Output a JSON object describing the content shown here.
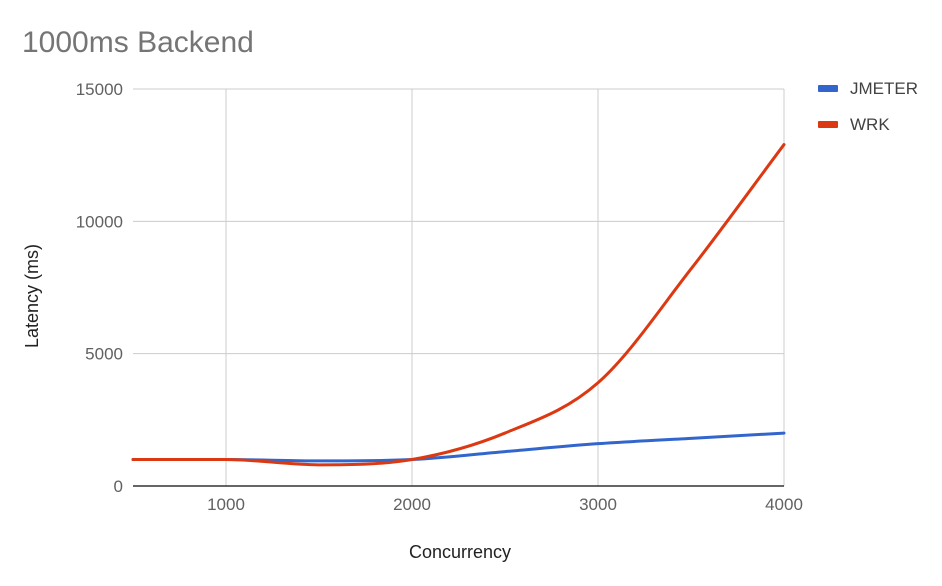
{
  "chart_data": {
    "type": "line",
    "title": "1000ms Backend",
    "xlabel": "Concurrency",
    "ylabel": "Latency (ms)",
    "xlim": [
      500,
      4000
    ],
    "ylim": [
      0,
      15000
    ],
    "x_ticks": [
      1000,
      2000,
      3000,
      4000
    ],
    "y_ticks": [
      0,
      5000,
      10000,
      15000
    ],
    "grid": true,
    "legend_position": "right",
    "series": [
      {
        "name": "JMETER",
        "color": "#3366cc",
        "x": [
          500,
          1000,
          1500,
          2000,
          2500,
          3000,
          3500,
          4000
        ],
        "y": [
          1000,
          1000,
          950,
          1000,
          1300,
          1600,
          1800,
          2000
        ]
      },
      {
        "name": "WRK",
        "color": "#dc3912",
        "x": [
          500,
          1000,
          1500,
          2000,
          2500,
          3000,
          3500,
          4000
        ],
        "y": [
          1000,
          1000,
          800,
          1000,
          2000,
          3900,
          8200,
          12900
        ]
      }
    ]
  }
}
